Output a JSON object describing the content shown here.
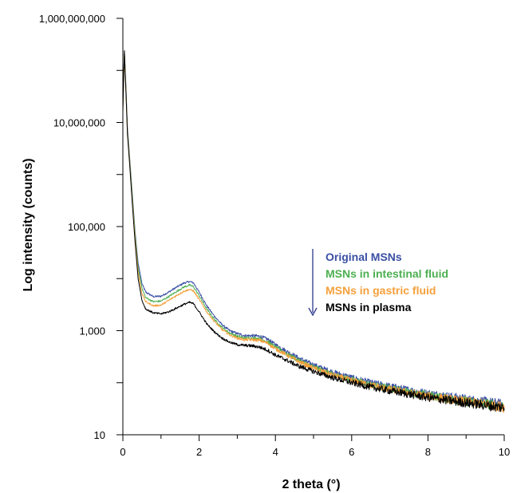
{
  "chart_data": {
    "type": "line",
    "title": "",
    "xlabel": "2 theta (°)",
    "ylabel": "Log intensity (counts)",
    "xlim": [
      0,
      10
    ],
    "ylim": [
      10,
      1000000000
    ],
    "y_scale": "log",
    "grid": false,
    "x_ticks": [
      "0",
      "2",
      "4",
      "6",
      "8",
      "10"
    ],
    "y_ticks": [
      "10",
      "1,000",
      "100,000",
      "10,000,000",
      "1,000,000,000"
    ],
    "legend_position": "middle-right",
    "legend_arrow": "downward",
    "series": [
      {
        "name": "Original MSNs",
        "color": "#3a4fa3",
        "points": [
          [
            0.0,
            30000000
          ],
          [
            0.04,
            230000000
          ],
          [
            0.08,
            50000000
          ],
          [
            0.12,
            8000000
          ],
          [
            0.18,
            2000000
          ],
          [
            0.25,
            400000
          ],
          [
            0.32,
            80000
          ],
          [
            0.4,
            20000
          ],
          [
            0.5,
            8000
          ],
          [
            0.6,
            5500
          ],
          [
            0.8,
            4500
          ],
          [
            1.0,
            4600
          ],
          [
            1.2,
            5500
          ],
          [
            1.4,
            6800
          ],
          [
            1.6,
            8200
          ],
          [
            1.75,
            8800
          ],
          [
            1.85,
            8300
          ],
          [
            2.0,
            5500
          ],
          [
            2.2,
            3000
          ],
          [
            2.4,
            1900
          ],
          [
            2.6,
            1300
          ],
          [
            2.8,
            1000
          ],
          [
            3.0,
            880
          ],
          [
            3.2,
            800
          ],
          [
            3.4,
            800
          ],
          [
            3.6,
            780
          ],
          [
            3.8,
            680
          ],
          [
            4.0,
            540
          ],
          [
            4.3,
            400
          ],
          [
            4.6,
            300
          ],
          [
            5.0,
            220
          ],
          [
            5.5,
            160
          ],
          [
            6.0,
            125
          ],
          [
            6.5,
            100
          ],
          [
            7.0,
            85
          ],
          [
            7.5,
            72
          ],
          [
            8.0,
            62
          ],
          [
            8.5,
            55
          ],
          [
            9.0,
            48
          ],
          [
            9.5,
            43
          ],
          [
            10.0,
            38
          ]
        ]
      },
      {
        "name": "MSNs in intestinal fluid",
        "color": "#4caf50",
        "points": [
          [
            0.0,
            20000000
          ],
          [
            0.04,
            220000000
          ],
          [
            0.08,
            45000000
          ],
          [
            0.12,
            7000000
          ],
          [
            0.18,
            1800000
          ],
          [
            0.25,
            350000
          ],
          [
            0.32,
            70000
          ],
          [
            0.4,
            16000
          ],
          [
            0.5,
            6500
          ],
          [
            0.6,
            4300
          ],
          [
            0.8,
            3600
          ],
          [
            1.0,
            3700
          ],
          [
            1.2,
            4500
          ],
          [
            1.4,
            5600
          ],
          [
            1.6,
            6900
          ],
          [
            1.75,
            7500
          ],
          [
            1.85,
            7000
          ],
          [
            2.0,
            4700
          ],
          [
            2.2,
            2600
          ],
          [
            2.4,
            1650
          ],
          [
            2.6,
            1150
          ],
          [
            2.8,
            900
          ],
          [
            3.0,
            780
          ],
          [
            3.2,
            720
          ],
          [
            3.4,
            720
          ],
          [
            3.6,
            700
          ],
          [
            3.8,
            610
          ],
          [
            4.0,
            480
          ],
          [
            4.3,
            360
          ],
          [
            4.6,
            270
          ],
          [
            5.0,
            200
          ],
          [
            5.5,
            145
          ],
          [
            6.0,
            115
          ],
          [
            6.5,
            93
          ],
          [
            7.0,
            78
          ],
          [
            7.5,
            66
          ],
          [
            8.0,
            57
          ],
          [
            8.5,
            50
          ],
          [
            9.0,
            44
          ],
          [
            9.5,
            40
          ],
          [
            10.0,
            35
          ]
        ]
      },
      {
        "name": "MSNs in gastric fluid",
        "color": "#f5a03c",
        "points": [
          [
            0.0,
            18000000
          ],
          [
            0.04,
            210000000
          ],
          [
            0.08,
            42000000
          ],
          [
            0.12,
            6500000
          ],
          [
            0.18,
            1600000
          ],
          [
            0.25,
            300000
          ],
          [
            0.32,
            60000
          ],
          [
            0.4,
            13000
          ],
          [
            0.5,
            5300
          ],
          [
            0.6,
            3600
          ],
          [
            0.8,
            3000
          ],
          [
            1.0,
            3100
          ],
          [
            1.2,
            3800
          ],
          [
            1.4,
            4700
          ],
          [
            1.6,
            5700
          ],
          [
            1.75,
            6200
          ],
          [
            1.85,
            5800
          ],
          [
            2.0,
            4000
          ],
          [
            2.2,
            2300
          ],
          [
            2.4,
            1500
          ],
          [
            2.6,
            1050
          ],
          [
            2.8,
            830
          ],
          [
            3.0,
            720
          ],
          [
            3.2,
            670
          ],
          [
            3.4,
            670
          ],
          [
            3.6,
            650
          ],
          [
            3.8,
            570
          ],
          [
            4.0,
            450
          ],
          [
            4.3,
            340
          ],
          [
            4.6,
            255
          ],
          [
            5.0,
            190
          ],
          [
            5.5,
            140
          ],
          [
            6.0,
            110
          ],
          [
            6.5,
            90
          ],
          [
            7.0,
            75
          ],
          [
            7.5,
            64
          ],
          [
            8.0,
            55
          ],
          [
            8.5,
            49
          ],
          [
            9.0,
            43
          ],
          [
            9.5,
            39
          ],
          [
            10.0,
            34
          ]
        ]
      },
      {
        "name": "MSNs in plasma",
        "color": "#000000",
        "points": [
          [
            0.0,
            16000000
          ],
          [
            0.04,
            240000000
          ],
          [
            0.08,
            40000000
          ],
          [
            0.12,
            6000000
          ],
          [
            0.18,
            1500000
          ],
          [
            0.25,
            260000
          ],
          [
            0.32,
            50000
          ],
          [
            0.4,
            10000
          ],
          [
            0.5,
            3800
          ],
          [
            0.6,
            2600
          ],
          [
            0.8,
            2200
          ],
          [
            1.0,
            2100
          ],
          [
            1.2,
            2300
          ],
          [
            1.4,
            2700
          ],
          [
            1.6,
            3200
          ],
          [
            1.75,
            3500
          ],
          [
            1.85,
            3300
          ],
          [
            2.0,
            2300
          ],
          [
            2.2,
            1350
          ],
          [
            2.4,
            950
          ],
          [
            2.6,
            720
          ],
          [
            2.8,
            600
          ],
          [
            3.0,
            540
          ],
          [
            3.2,
            520
          ],
          [
            3.4,
            510
          ],
          [
            3.6,
            480
          ],
          [
            3.8,
            420
          ],
          [
            4.0,
            340
          ],
          [
            4.3,
            270
          ],
          [
            4.6,
            210
          ],
          [
            5.0,
            165
          ],
          [
            5.5,
            125
          ],
          [
            6.0,
            100
          ],
          [
            6.5,
            82
          ],
          [
            7.0,
            70
          ],
          [
            7.5,
            60
          ],
          [
            8.0,
            52
          ],
          [
            8.5,
            46
          ],
          [
            9.0,
            41
          ],
          [
            9.5,
            37
          ],
          [
            10.0,
            33
          ]
        ]
      }
    ]
  }
}
